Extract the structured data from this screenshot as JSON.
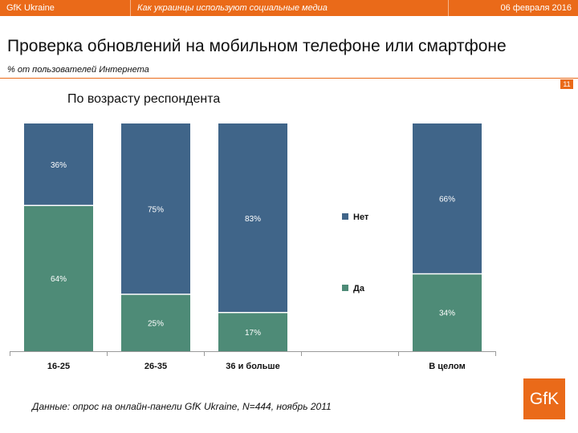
{
  "header": {
    "left": "GfK Ukraine",
    "center": "Как украинцы используют социальные медиа",
    "right": "06 февраля 2016"
  },
  "slide": {
    "title": "Проверка обновлений на мобильном телефоне или смартфоне",
    "subtitle": "% от пользователей Интернета",
    "page_number": "11",
    "section_title": "По возрасту респондента",
    "footnote": "Данные: опрос на онлайн-панели GfK Ukraine, N=444, ноябрь 2011",
    "logo_text": "GfK"
  },
  "colors": {
    "accent": "#ea6a19",
    "no": "#406589",
    "yes": "#4e8b77"
  },
  "chart_data": {
    "type": "bar",
    "stacked": true,
    "title": "По возрасту респондента",
    "categories": [
      "16-25",
      "26-35",
      "36 и больше",
      "",
      "В целом"
    ],
    "series": [
      {
        "name": "Да",
        "values": [
          64,
          25,
          17,
          null,
          34
        ],
        "labels": [
          "64%",
          "25%",
          "17%",
          "",
          "34%"
        ]
      },
      {
        "name": "Нет",
        "values": [
          36,
          75,
          83,
          null,
          66
        ],
        "labels": [
          "36%",
          "75%",
          "83%",
          "",
          "66%"
        ]
      }
    ],
    "ylim": [
      0,
      100
    ],
    "legend": [
      {
        "name": "Нет"
      },
      {
        "name": "Да"
      }
    ],
    "legend_position": "center",
    "xlabel": "",
    "ylabel": ""
  }
}
